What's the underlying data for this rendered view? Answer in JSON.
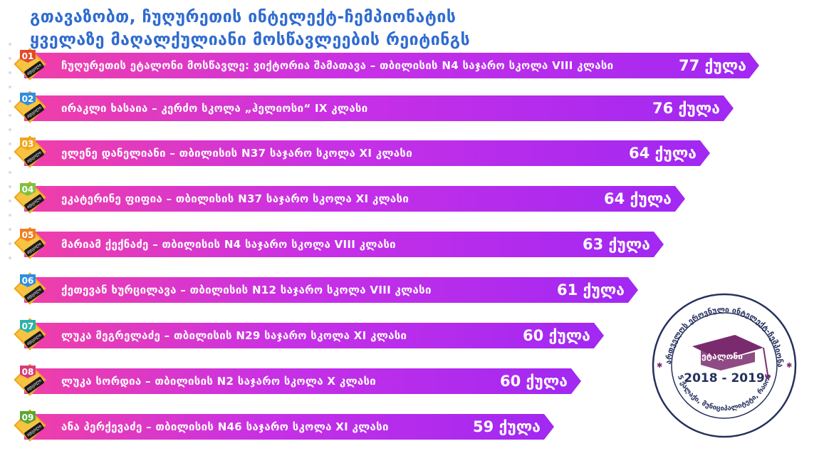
{
  "title": {
    "line1": "გთავაზობთ, ჩუღურეთის ინტელექტ-ჩემპიონატის",
    "line2": "ყველაზე მაღალქულიანი მოსწავლეების რეიტინგს"
  },
  "badge_text": "ადგილი",
  "score_suffix": "ქულა",
  "rows": [
    {
      "num": "01",
      "name": "ჩუღურეთის ეტალონი მოსწავლე: ვიქტორია შამათავა – თბილისის N4 საჯარო სკოლა VIII კლასი",
      "score": "77 ქულა",
      "tab_color": "#e24a2b"
    },
    {
      "num": "02",
      "name": "ირაკლი ხასაია – კერძო სკოლა „ჰელიოსი“   IX კლასი",
      "score": "76 ქულა",
      "tab_color": "#2f8ee0"
    },
    {
      "num": "03",
      "name": "ელენე დანელიანი – თბილისის N37 საჯარო სკოლა XI კლასი",
      "score": "64 ქულა",
      "tab_color": "#f2a51d"
    },
    {
      "num": "04",
      "name": "ეკატერინე ფიფია – თბილისის N37 საჯარო სკოლა XI კლასი",
      "score": "64 ქულა",
      "tab_color": "#7cc23d"
    },
    {
      "num": "05",
      "name": "მარიამ ქექნაძე – თბილისის N4 საჯარო სკოლა VIII კლასი",
      "score": "63 ქულა",
      "tab_color": "#ef7d22"
    },
    {
      "num": "06",
      "name": "ქეთევან ხურცილავა – თბილისის N12 საჯარო სკოლა VIII კლასი",
      "score": "61 ქულა",
      "tab_color": "#2f8ee0"
    },
    {
      "num": "07",
      "name": "ლუკა მეგრელაძე – თბილისის N29 საჯარო სკოლა XI კლასი",
      "score": "60 ქულა",
      "tab_color": "#2bb3a8"
    },
    {
      "num": "08",
      "name": "ლუკა სორდია – თბილისის N2 საჯარო სკოლა X კლასი",
      "score": "60 ქულა",
      "tab_color": "#d63c7a"
    },
    {
      "num": "09",
      "name": "ანა პერქევაძე – თბილისის N46 საჯარო სკოლა XI კლასი",
      "score": "59 ქულა",
      "tab_color": "#5aa832"
    }
  ],
  "seal": {
    "ring_top": "საქართველოს ეროვნული ინტელექტ-ჩემპიონატი",
    "ring_bottom": "75 ქალაქი, მუნიციპალიტეტი, რაიონი",
    "stage_label": "ეტალონი",
    "years": "2018 - 2019",
    "colors": {
      "ring": "#25305e",
      "accent": "#7a2b6e"
    }
  }
}
